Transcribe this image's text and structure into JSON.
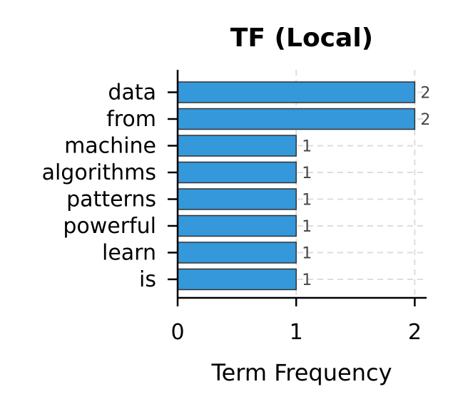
{
  "chart_data": {
    "type": "bar",
    "orientation": "horizontal",
    "title": "TF (Local)",
    "xlabel": "Term Frequency",
    "ylabel": "",
    "categories": [
      "data",
      "from",
      "machine",
      "algorithms",
      "patterns",
      "powerful",
      "learn",
      "is"
    ],
    "values": [
      2,
      2,
      1,
      1,
      1,
      1,
      1,
      1
    ],
    "data_labels": [
      "2",
      "2",
      "1",
      "1",
      "1",
      "1",
      "1",
      "1"
    ],
    "xlim": [
      0,
      2.1
    ],
    "xticks": [
      0,
      1,
      2
    ],
    "xtick_labels": [
      "0",
      "1",
      "2"
    ],
    "grid": true,
    "bar_color": "#3498db",
    "edge_color": "#333333"
  }
}
